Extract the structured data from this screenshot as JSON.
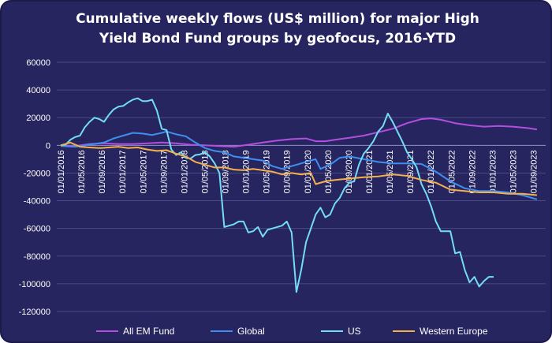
{
  "title_line1": "Cumulative weekly flows (US$ million) for major High",
  "title_line2": "Yield Bond Fund groups by geofocus, 2016-YTD",
  "chart_data": {
    "type": "line",
    "title": "Cumulative weekly flows (US$ million) for major High Yield Bond Fund groups by geofocus, 2016-YTD",
    "xlabel": "",
    "ylabel": "",
    "ylim": [
      -120000,
      60000
    ],
    "yticks": [
      60000,
      40000,
      20000,
      0,
      -20000,
      -40000,
      -60000,
      -80000,
      -100000,
      -120000
    ],
    "grid": "horizontal",
    "legend_position": "bottom",
    "x_tick_labels": [
      "01/01/2016",
      "01/05/2016",
      "01/09/2016",
      "01/01/2017",
      "01/05/2017",
      "01/09/2017",
      "01/01/2018",
      "01/05/2018",
      "01/09/2018",
      "01/01/2019",
      "01/05/2019",
      "01/09/2019",
      "01/01/2020",
      "01/05/2020",
      "01/09/2020",
      "01/01/2021",
      "01/05/2021",
      "01/09/2021",
      "01/01/2022",
      "01/05/2022",
      "01/09/2022",
      "01/01/2023",
      "01/05/2023",
      "01/09/2023"
    ],
    "series": [
      {
        "name": "All EM Fund",
        "color": "#b34ee0",
        "points": [
          [
            0,
            0
          ],
          [
            3,
            -500
          ],
          [
            6,
            1000
          ],
          [
            9,
            1500
          ],
          [
            12,
            1000
          ],
          [
            15,
            1000
          ],
          [
            18,
            1500
          ],
          [
            21,
            2000
          ],
          [
            24,
            1500
          ],
          [
            27,
            500
          ],
          [
            30,
            0
          ],
          [
            33,
            -500
          ],
          [
            36,
            -1000
          ],
          [
            39,
            500
          ],
          [
            42,
            2000
          ],
          [
            45,
            3500
          ],
          [
            48,
            4500
          ],
          [
            51,
            5000
          ],
          [
            53,
            3000
          ],
          [
            55,
            3000
          ],
          [
            57,
            4000
          ],
          [
            60,
            5500
          ],
          [
            63,
            7000
          ],
          [
            66,
            9500
          ],
          [
            69,
            12000
          ],
          [
            72,
            16000
          ],
          [
            75,
            19000
          ],
          [
            77,
            19500
          ],
          [
            79,
            18500
          ],
          [
            82,
            16000
          ],
          [
            85,
            14500
          ],
          [
            88,
            13500
          ],
          [
            91,
            14000
          ],
          [
            94,
            13500
          ],
          [
            97,
            12500
          ],
          [
            99,
            11500
          ]
        ]
      },
      {
        "name": "Global",
        "color": "#3f8ef0",
        "points": [
          [
            0,
            -500
          ],
          [
            3,
            -1000
          ],
          [
            6,
            500
          ],
          [
            9,
            2000
          ],
          [
            11,
            5000
          ],
          [
            13,
            7000
          ],
          [
            15,
            9000
          ],
          [
            17,
            8500
          ],
          [
            19,
            7500
          ],
          [
            21,
            9000
          ],
          [
            22,
            10000
          ],
          [
            24,
            8000
          ],
          [
            26,
            6500
          ],
          [
            28,
            2000
          ],
          [
            30,
            -2000
          ],
          [
            32,
            -4000
          ],
          [
            34,
            -5000
          ],
          [
            36,
            -8000
          ],
          [
            38,
            -9000
          ],
          [
            40,
            -10000
          ],
          [
            42,
            -11000
          ],
          [
            44,
            -15000
          ],
          [
            46,
            -17000
          ],
          [
            48,
            -15000
          ],
          [
            50,
            -13000
          ],
          [
            52,
            -11000
          ],
          [
            53,
            -10000
          ],
          [
            54,
            -17000
          ],
          [
            56,
            -14000
          ],
          [
            58,
            -9000
          ],
          [
            60,
            -8000
          ],
          [
            63,
            -10000
          ],
          [
            66,
            -12000
          ],
          [
            69,
            -13000
          ],
          [
            72,
            -13000
          ],
          [
            75,
            -13500
          ],
          [
            78,
            -19000
          ],
          [
            81,
            -26000
          ],
          [
            84,
            -31000
          ],
          [
            87,
            -33000
          ],
          [
            90,
            -33000
          ],
          [
            93,
            -34000
          ],
          [
            96,
            -36000
          ],
          [
            99,
            -39000
          ]
        ]
      },
      {
        "name": "US",
        "color": "#73dcf6",
        "points": [
          [
            0,
            0
          ],
          [
            1,
            500
          ],
          [
            2,
            4000
          ],
          [
            3,
            6000
          ],
          [
            4,
            7000
          ],
          [
            5,
            13000
          ],
          [
            6,
            17000
          ],
          [
            7,
            20000
          ],
          [
            8,
            19000
          ],
          [
            9,
            17000
          ],
          [
            10,
            22000
          ],
          [
            11,
            26000
          ],
          [
            12,
            28000
          ],
          [
            13,
            28500
          ],
          [
            14,
            31000
          ],
          [
            15,
            33000
          ],
          [
            16,
            34000
          ],
          [
            17,
            32000
          ],
          [
            18,
            32000
          ],
          [
            19,
            33000
          ],
          [
            20,
            25000
          ],
          [
            21,
            12000
          ],
          [
            22,
            11000
          ],
          [
            23,
            -3000
          ],
          [
            24,
            -7000
          ],
          [
            25,
            -5000
          ],
          [
            26,
            -9000
          ],
          [
            27,
            -9500
          ],
          [
            28,
            -7000
          ],
          [
            29,
            -6500
          ],
          [
            30,
            -5000
          ],
          [
            31,
            -8000
          ],
          [
            32,
            -13000
          ],
          [
            33,
            -20000
          ],
          [
            34,
            -59000
          ],
          [
            35,
            -58000
          ],
          [
            36,
            -57000
          ],
          [
            37,
            -55000
          ],
          [
            38,
            -55000
          ],
          [
            39,
            -63000
          ],
          [
            40,
            -62000
          ],
          [
            41,
            -59000
          ],
          [
            42,
            -66000
          ],
          [
            43,
            -61000
          ],
          [
            44,
            -60000
          ],
          [
            45,
            -59000
          ],
          [
            46,
            -58000
          ],
          [
            47,
            -55000
          ],
          [
            48,
            -63000
          ],
          [
            49,
            -106000
          ],
          [
            50,
            -90000
          ],
          [
            51,
            -70000
          ],
          [
            52,
            -60000
          ],
          [
            53,
            -50000
          ],
          [
            54,
            -45000
          ],
          [
            55,
            -52000
          ],
          [
            56,
            -50000
          ],
          [
            57,
            -42000
          ],
          [
            58,
            -38000
          ],
          [
            59,
            -31000
          ],
          [
            60,
            -27000
          ],
          [
            61,
            -26000
          ],
          [
            62,
            -14000
          ],
          [
            63,
            -6000
          ],
          [
            64,
            -2000
          ],
          [
            65,
            3000
          ],
          [
            66,
            10000
          ],
          [
            67,
            14000
          ],
          [
            68,
            23000
          ],
          [
            69,
            17000
          ],
          [
            70,
            10000
          ],
          [
            71,
            3000
          ],
          [
            72,
            -5000
          ],
          [
            73,
            -10000
          ],
          [
            74,
            -16000
          ],
          [
            75,
            -28000
          ],
          [
            76,
            -35000
          ],
          [
            77,
            -44000
          ],
          [
            78,
            -55000
          ],
          [
            79,
            -62000
          ],
          [
            80,
            -62000
          ],
          [
            81,
            -62000
          ],
          [
            82,
            -78000
          ],
          [
            83,
            -77000
          ],
          [
            84,
            -90000
          ],
          [
            85,
            -99000
          ],
          [
            86,
            -95000
          ],
          [
            87,
            -102000
          ],
          [
            88,
            -98000
          ],
          [
            89,
            -95000
          ],
          [
            90,
            -95000
          ]
        ]
      },
      {
        "name": "Western Europe",
        "color": "#f5b04b",
        "points": [
          [
            0,
            0
          ],
          [
            2,
            2000
          ],
          [
            4,
            -1000
          ],
          [
            6,
            -1500
          ],
          [
            8,
            -2000
          ],
          [
            10,
            -1500
          ],
          [
            12,
            -1000
          ],
          [
            14,
            -2000
          ],
          [
            16,
            -1500
          ],
          [
            18,
            -3000
          ],
          [
            20,
            -4000
          ],
          [
            22,
            -3500
          ],
          [
            24,
            -6000
          ],
          [
            26,
            -8000
          ],
          [
            28,
            -12000
          ],
          [
            30,
            -14000
          ],
          [
            32,
            -16000
          ],
          [
            34,
            -16000
          ],
          [
            36,
            -17500
          ],
          [
            38,
            -18000
          ],
          [
            40,
            -17000
          ],
          [
            42,
            -18000
          ],
          [
            44,
            -19000
          ],
          [
            46,
            -21000
          ],
          [
            48,
            -20000
          ],
          [
            50,
            -21000
          ],
          [
            52,
            -20000
          ],
          [
            53,
            -28000
          ],
          [
            55,
            -26000
          ],
          [
            57,
            -25000
          ],
          [
            60,
            -24000
          ],
          [
            63,
            -23000
          ],
          [
            66,
            -22500
          ],
          [
            69,
            -21000
          ],
          [
            72,
            -22000
          ],
          [
            75,
            -25000
          ],
          [
            78,
            -27000
          ],
          [
            81,
            -32000
          ],
          [
            84,
            -33000
          ],
          [
            87,
            -34000
          ],
          [
            90,
            -34000
          ],
          [
            93,
            -35000
          ],
          [
            96,
            -35000
          ],
          [
            99,
            -36000
          ]
        ]
      }
    ]
  }
}
